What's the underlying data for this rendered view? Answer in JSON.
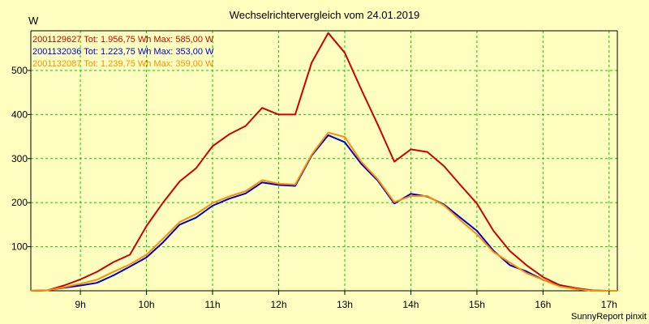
{
  "chart_data": {
    "type": "line",
    "title": "Wechselrichtervergleich vom 24.01.2019",
    "y_unit": "W",
    "credit": "SunnyReport pinxit",
    "grid": true,
    "grid_color": "#00cc00",
    "legend_placement": "top-left",
    "xlim": [
      8.25,
      17.125
    ],
    "ylim": [
      0,
      590
    ],
    "x_ticks": [
      9,
      10,
      11,
      12,
      13,
      14,
      15,
      16,
      17
    ],
    "x_tick_labels": [
      "9h",
      "10h",
      "11h",
      "12h",
      "13h",
      "14h",
      "15h",
      "16h",
      "17h"
    ],
    "y_ticks": [
      100,
      200,
      300,
      400,
      500
    ],
    "y_tick_labels": [
      "100",
      "200",
      "300",
      "400",
      "500"
    ],
    "series": [
      {
        "name": "2001129627",
        "legend": "2001129627 Tot: 1.956,75 Wh Max: 585,00 W",
        "color": "#cc0000",
        "x": [
          8.25,
          8.5,
          8.75,
          9.0,
          9.25,
          9.5,
          9.75,
          10.0,
          10.25,
          10.5,
          10.75,
          11.0,
          11.25,
          11.5,
          11.75,
          12.0,
          12.25,
          12.5,
          12.75,
          13.0,
          13.25,
          13.5,
          13.75,
          14.0,
          14.25,
          14.5,
          14.75,
          15.0,
          15.25,
          15.5,
          15.75,
          16.0,
          16.25,
          16.5,
          16.75,
          17.0,
          17.125
        ],
        "values": [
          0,
          1,
          12,
          26,
          43,
          65,
          82,
          147,
          200,
          248,
          278,
          328,
          355,
          374,
          415,
          400,
          400,
          518,
          585,
          540,
          457,
          377,
          293,
          321,
          315,
          283,
          240,
          198,
          136,
          90,
          58,
          31,
          13,
          6,
          1,
          0,
          0
        ]
      },
      {
        "name": "2001132036",
        "legend": "2001132036 Tot: 1.223,75 Wh Max: 353,00 W",
        "color": "#0000cc",
        "x": [
          8.25,
          8.5,
          8.75,
          9.0,
          9.25,
          9.5,
          9.75,
          10.0,
          10.25,
          10.5,
          10.75,
          11.0,
          11.25,
          11.5,
          11.75,
          12.0,
          12.25,
          12.5,
          12.75,
          13.0,
          13.25,
          13.5,
          13.75,
          14.0,
          14.25,
          14.5,
          14.75,
          15.0,
          15.25,
          15.5,
          15.75,
          16.0,
          16.25,
          16.5,
          16.75,
          17.0,
          17.125
        ],
        "values": [
          0,
          1,
          7,
          12,
          18,
          35,
          55,
          76,
          110,
          150,
          166,
          193,
          209,
          221,
          246,
          240,
          238,
          307,
          353,
          337,
          288,
          250,
          198,
          220,
          214,
          196,
          166,
          136,
          91,
          58,
          44,
          25,
          11,
          4,
          0,
          0,
          0
        ]
      },
      {
        "name": "2001132087",
        "legend": "2001132087 Tot: 1.239,75 Wh Max: 359,00 W",
        "color": "#ff8c00",
        "x": [
          8.25,
          8.5,
          8.75,
          9.0,
          9.25,
          9.5,
          9.75,
          10.0,
          10.25,
          10.5,
          10.75,
          11.0,
          11.25,
          11.5,
          11.75,
          12.0,
          12.25,
          12.5,
          12.75,
          13.0,
          13.25,
          13.5,
          13.75,
          14.0,
          14.25,
          14.5,
          14.75,
          15.0,
          15.25,
          15.5,
          15.75,
          16.0,
          16.25,
          16.5,
          16.75,
          17.0,
          17.125
        ],
        "values": [
          0,
          1,
          8,
          16,
          25,
          43,
          60,
          82,
          118,
          156,
          174,
          199,
          214,
          226,
          251,
          243,
          241,
          309,
          359,
          349,
          293,
          253,
          201,
          215,
          215,
          194,
          160,
          128,
          88,
          64,
          40,
          25,
          10,
          4,
          0,
          0,
          0
        ]
      }
    ]
  }
}
